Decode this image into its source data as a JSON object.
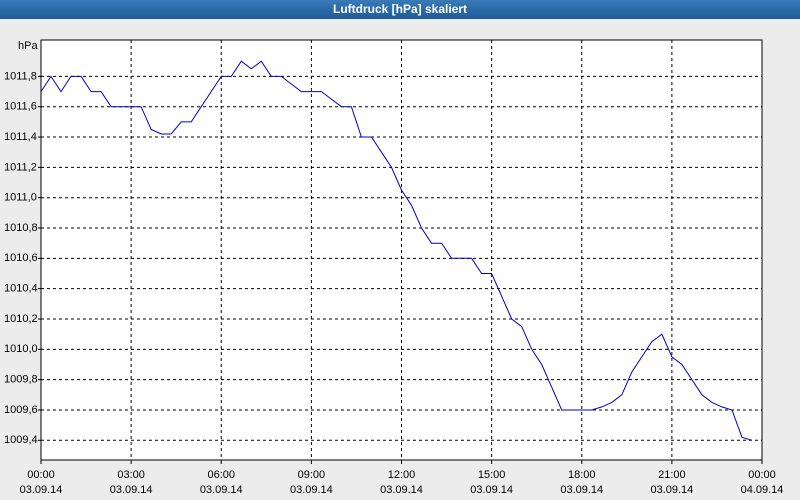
{
  "chart_data": {
    "type": "line",
    "title": "Luftdruck [hPa] skaliert",
    "ylabel": "hPa",
    "x": [
      "2014-09-03T00:00",
      "2014-09-03T00:20",
      "2014-09-03T00:40",
      "2014-09-03T01:00",
      "2014-09-03T01:20",
      "2014-09-03T01:40",
      "2014-09-03T02:00",
      "2014-09-03T02:20",
      "2014-09-03T02:40",
      "2014-09-03T03:00",
      "2014-09-03T03:20",
      "2014-09-03T03:40",
      "2014-09-03T04:00",
      "2014-09-03T04:20",
      "2014-09-03T04:40",
      "2014-09-03T05:00",
      "2014-09-03T05:20",
      "2014-09-03T05:40",
      "2014-09-03T06:00",
      "2014-09-03T06:20",
      "2014-09-03T06:40",
      "2014-09-03T07:00",
      "2014-09-03T07:20",
      "2014-09-03T07:40",
      "2014-09-03T08:00",
      "2014-09-03T08:20",
      "2014-09-03T08:40",
      "2014-09-03T09:00",
      "2014-09-03T09:20",
      "2014-09-03T09:40",
      "2014-09-03T10:00",
      "2014-09-03T10:20",
      "2014-09-03T10:40",
      "2014-09-03T11:00",
      "2014-09-03T11:20",
      "2014-09-03T11:40",
      "2014-09-03T12:00",
      "2014-09-03T12:20",
      "2014-09-03T12:40",
      "2014-09-03T13:00",
      "2014-09-03T13:20",
      "2014-09-03T13:40",
      "2014-09-03T14:00",
      "2014-09-03T14:20",
      "2014-09-03T14:40",
      "2014-09-03T15:00",
      "2014-09-03T15:20",
      "2014-09-03T15:40",
      "2014-09-03T16:00",
      "2014-09-03T16:20",
      "2014-09-03T16:40",
      "2014-09-03T17:00",
      "2014-09-03T17:20",
      "2014-09-03T17:40",
      "2014-09-03T18:00",
      "2014-09-03T18:20",
      "2014-09-03T18:40",
      "2014-09-03T19:00",
      "2014-09-03T19:20",
      "2014-09-03T19:40",
      "2014-09-03T20:00",
      "2014-09-03T20:20",
      "2014-09-03T20:40",
      "2014-09-03T21:00",
      "2014-09-03T21:20",
      "2014-09-03T21:40",
      "2014-09-03T22:00",
      "2014-09-03T22:20",
      "2014-09-03T22:40",
      "2014-09-03T23:00",
      "2014-09-03T23:20",
      "2014-09-03T23:40"
    ],
    "series": [
      {
        "name": "Luftdruck",
        "color": "#0000c8",
        "values": [
          1011.7,
          1011.8,
          1011.7,
          1011.8,
          1011.8,
          1011.7,
          1011.7,
          1011.6,
          1011.6,
          1011.6,
          1011.6,
          1011.45,
          1011.42,
          1011.42,
          1011.5,
          1011.5,
          1011.6,
          1011.7,
          1011.8,
          1011.8,
          1011.9,
          1011.85,
          1011.9,
          1011.8,
          1011.8,
          1011.75,
          1011.7,
          1011.7,
          1011.7,
          1011.65,
          1011.6,
          1011.6,
          1011.4,
          1011.4,
          1011.3,
          1011.2,
          1011.05,
          1010.95,
          1010.8,
          1010.7,
          1010.7,
          1010.6,
          1010.6,
          1010.6,
          1010.5,
          1010.5,
          1010.35,
          1010.2,
          1010.15,
          1010.0,
          1009.9,
          1009.75,
          1009.6,
          1009.6,
          1009.6,
          1009.6,
          1009.62,
          1009.65,
          1009.7,
          1009.85,
          1009.95,
          1010.05,
          1010.1,
          1009.95,
          1009.9,
          1009.8,
          1009.7,
          1009.65,
          1009.62,
          1009.6,
          1009.42,
          1009.4
        ]
      }
    ],
    "xlim": [
      "2014-09-03T00:00",
      "2014-09-04T00:00"
    ],
    "xticks": [
      {
        "value": "2014-09-03T00:00",
        "label": [
          "00:00",
          "03.09.14"
        ]
      },
      {
        "value": "2014-09-03T03:00",
        "label": [
          "03:00",
          "03.09.14"
        ]
      },
      {
        "value": "2014-09-03T06:00",
        "label": [
          "06:00",
          "03.09.14"
        ]
      },
      {
        "value": "2014-09-03T09:00",
        "label": [
          "09:00",
          "03.09.14"
        ]
      },
      {
        "value": "2014-09-03T12:00",
        "label": [
          "12:00",
          "03.09.14"
        ]
      },
      {
        "value": "2014-09-03T15:00",
        "label": [
          "15:00",
          "03.09.14"
        ]
      },
      {
        "value": "2014-09-03T18:00",
        "label": [
          "18:00",
          "03.09.14"
        ]
      },
      {
        "value": "2014-09-03T21:00",
        "label": [
          "21:00",
          "03.09.14"
        ]
      },
      {
        "value": "2014-09-04T00:00",
        "label": [
          "00:00",
          "04.09.14"
        ]
      }
    ],
    "ylim": [
      1009.27,
      1012.04
    ],
    "yticks": [
      {
        "value": 1009.4,
        "label": "1009,4"
      },
      {
        "value": 1009.6,
        "label": "1009,6"
      },
      {
        "value": 1009.8,
        "label": "1009,8"
      },
      {
        "value": 1010.0,
        "label": "1010,0"
      },
      {
        "value": 1010.2,
        "label": "1010,2"
      },
      {
        "value": 1010.4,
        "label": "1010,4"
      },
      {
        "value": 1010.6,
        "label": "1010,6"
      },
      {
        "value": 1010.8,
        "label": "1010,8"
      },
      {
        "value": 1011.0,
        "label": "1011,0"
      },
      {
        "value": 1011.2,
        "label": "1011,2"
      },
      {
        "value": 1011.4,
        "label": "1011,4"
      },
      {
        "value": 1011.6,
        "label": "1011,6"
      },
      {
        "value": 1011.8,
        "label": "1011,8"
      }
    ],
    "grid": true
  }
}
